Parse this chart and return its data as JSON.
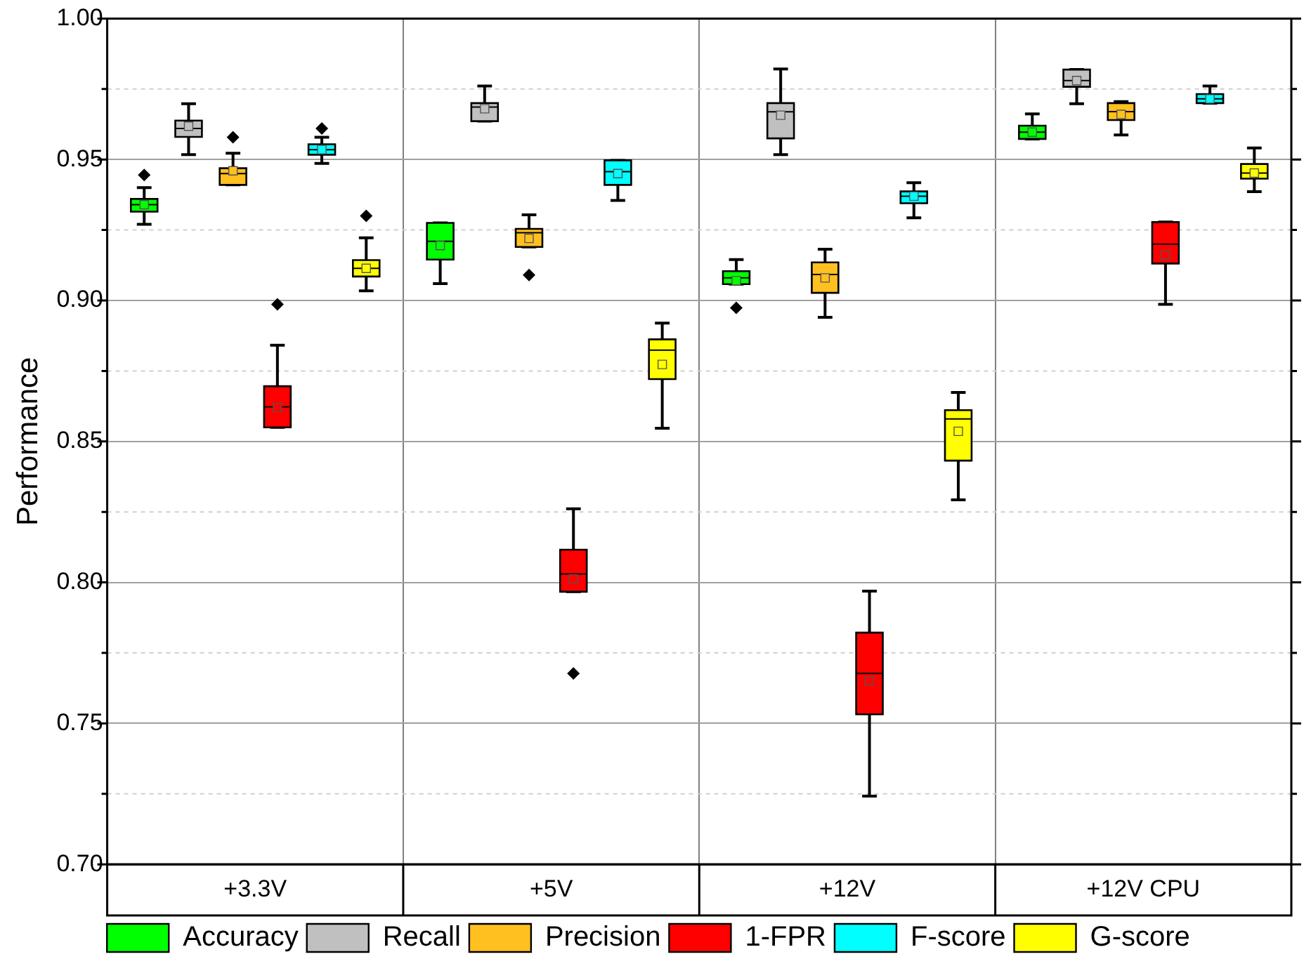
{
  "chart_data": {
    "type": "box",
    "ylabel": "Performance",
    "categories": [
      "+3.3V",
      "+5V",
      "+12V",
      "+12V CPU"
    ],
    "ylim": [
      0.7,
      1.0
    ],
    "yticks": [
      {
        "value": 0.7,
        "label": "0.70"
      },
      {
        "value": 0.725,
        "label": null
      },
      {
        "value": 0.75,
        "label": "0.75"
      },
      {
        "value": 0.775,
        "label": null
      },
      {
        "value": 0.8,
        "label": "0.80"
      },
      {
        "value": 0.825,
        "label": null
      },
      {
        "value": 0.85,
        "label": "0.85"
      },
      {
        "value": 0.875,
        "label": null
      },
      {
        "value": 0.9,
        "label": "0.90"
      },
      {
        "value": 0.925,
        "label": null
      },
      {
        "value": 0.95,
        "label": "0.95"
      },
      {
        "value": 0.975,
        "label": null
      },
      {
        "value": 1.0,
        "label": "1.00"
      }
    ],
    "grid": true,
    "legend": "bottom",
    "series": [
      {
        "name": "Accuracy",
        "color": "#00ff00",
        "boxes": [
          {
            "low": 0.927,
            "q1": 0.9315,
            "median": 0.934,
            "q3": 0.936,
            "high": 0.94,
            "mean": 0.934,
            "outliers": [
              0.9445
            ]
          },
          {
            "low": 0.906,
            "q1": 0.9145,
            "median": 0.921,
            "q3": 0.9275,
            "high": 0.9275,
            "mean": 0.9195
          },
          {
            "low": 0.9058,
            "q1": 0.9058,
            "median": 0.908,
            "q3": 0.9104,
            "high": 0.9145,
            "mean": 0.907,
            "outliers": [
              0.8974
            ]
          },
          {
            "low": 0.9573,
            "q1": 0.9573,
            "median": 0.9597,
            "q3": 0.962,
            "high": 0.9662,
            "mean": 0.9597
          }
        ]
      },
      {
        "name": "Recall",
        "color": "#c0c0c0",
        "boxes": [
          {
            "low": 0.9517,
            "q1": 0.958,
            "median": 0.961,
            "q3": 0.9638,
            "high": 0.9698,
            "mean": 0.9618
          },
          {
            "low": 0.9636,
            "q1": 0.9636,
            "median": 0.9686,
            "q3": 0.97,
            "high": 0.9761,
            "mean": 0.968
          },
          {
            "low": 0.9517,
            "q1": 0.9575,
            "median": 0.9669,
            "q3": 0.97,
            "high": 0.9821,
            "mean": 0.9657
          },
          {
            "low": 0.9698,
            "q1": 0.9758,
            "median": 0.978,
            "q3": 0.9819,
            "high": 0.9819,
            "mean": 0.978
          }
        ]
      },
      {
        "name": "Precision",
        "color": "#ffc020",
        "boxes": [
          {
            "low": 0.941,
            "q1": 0.941,
            "median": 0.945,
            "q3": 0.9469,
            "high": 0.9522,
            "mean": 0.946,
            "outliers": [
              0.9579
            ]
          },
          {
            "low": 0.919,
            "q1": 0.919,
            "median": 0.924,
            "q3": 0.9254,
            "high": 0.9304,
            "mean": 0.922,
            "outliers": [
              0.909
            ]
          },
          {
            "low": 0.894,
            "q1": 0.9027,
            "median": 0.9092,
            "q3": 0.9135,
            "high": 0.9182,
            "mean": 0.908
          },
          {
            "low": 0.9587,
            "q1": 0.964,
            "median": 0.967,
            "q3": 0.97,
            "high": 0.9705,
            "mean": 0.966
          }
        ]
      },
      {
        "name": "1-FPR",
        "color": "#ff0000",
        "boxes": [
          {
            "low": 0.855,
            "q1": 0.855,
            "median": 0.8623,
            "q3": 0.8696,
            "high": 0.8841,
            "mean": 0.862,
            "outliers": [
              0.8986
            ]
          },
          {
            "low": 0.7967,
            "q1": 0.7967,
            "median": 0.803,
            "q3": 0.8116,
            "high": 0.8261,
            "mean": 0.8013,
            "outliers": [
              0.7677
            ]
          },
          {
            "low": 0.7242,
            "q1": 0.7532,
            "median": 0.7677,
            "q3": 0.7822,
            "high": 0.7969,
            "mean": 0.765
          },
          {
            "low": 0.8986,
            "q1": 0.9131,
            "median": 0.92,
            "q3": 0.9278,
            "high": 0.9278,
            "mean": 0.9162
          }
        ]
      },
      {
        "name": "F-score",
        "color": "#00ffff",
        "boxes": [
          {
            "low": 0.9486,
            "q1": 0.9517,
            "median": 0.9535,
            "q3": 0.9554,
            "high": 0.9579,
            "mean": 0.9535,
            "outliers": [
              0.961
            ]
          },
          {
            "low": 0.9355,
            "q1": 0.941,
            "median": 0.9457,
            "q3": 0.9497,
            "high": 0.9497,
            "mean": 0.945
          },
          {
            "low": 0.9293,
            "q1": 0.9345,
            "median": 0.937,
            "q3": 0.9387,
            "high": 0.9418,
            "mean": 0.937
          },
          {
            "low": 0.97,
            "q1": 0.97,
            "median": 0.9715,
            "q3": 0.9732,
            "high": 0.9761,
            "mean": 0.9715
          }
        ]
      },
      {
        "name": "G-score",
        "color": "#ffff00",
        "boxes": [
          {
            "low": 0.9034,
            "q1": 0.9085,
            "median": 0.9114,
            "q3": 0.9143,
            "high": 0.9222,
            "mean": 0.9114,
            "outliers": [
              0.93
            ]
          },
          {
            "low": 0.8547,
            "q1": 0.8721,
            "median": 0.8824,
            "q3": 0.8862,
            "high": 0.892,
            "mean": 0.8773
          },
          {
            "low": 0.8293,
            "q1": 0.8432,
            "median": 0.858,
            "q3": 0.8611,
            "high": 0.8674,
            "mean": 0.8536
          },
          {
            "low": 0.9386,
            "q1": 0.9432,
            "median": 0.9452,
            "q3": 0.9484,
            "high": 0.9541,
            "mean": 0.9452
          }
        ]
      }
    ]
  }
}
